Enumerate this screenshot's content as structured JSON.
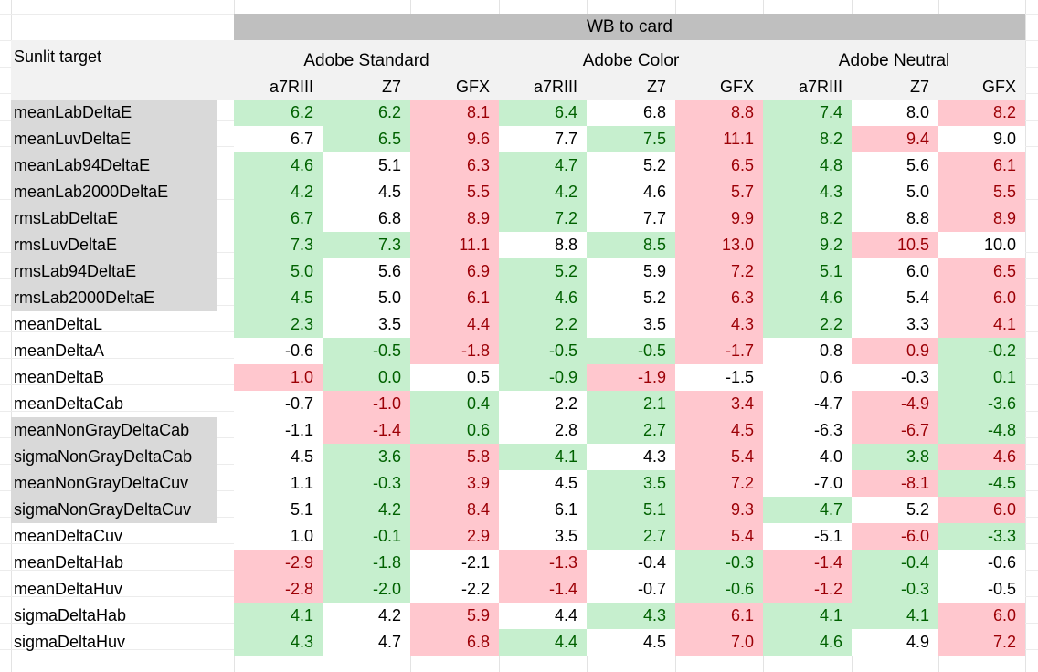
{
  "banner": "WB to card",
  "corner_label": "Sunlit target",
  "groups": [
    "Adobe Standard",
    "Adobe Color",
    "Adobe Neutral"
  ],
  "cameras": [
    "a7RIII",
    "Z7",
    "GFX",
    "a7RIII",
    "Z7",
    "GFX",
    "a7RIII",
    "Z7",
    "GFX"
  ],
  "colors": {
    "good_bg": "#c6efce",
    "good_text": "#006100",
    "bad_bg": "#ffc7ce",
    "bad_text": "#9c0006",
    "label_highlight": "#d9d9d9",
    "banner_bg": "#bfbfbf"
  },
  "rows": [
    {
      "label": "meanLabDeltaE",
      "highlight": true,
      "values": [
        "6.2",
        "6.2",
        "8.1",
        "6.4",
        "6.8",
        "8.8",
        "7.4",
        "8.0",
        "8.2"
      ],
      "colors": [
        "g",
        "g",
        "r",
        "g",
        "w",
        "r",
        "g",
        "w",
        "r"
      ]
    },
    {
      "label": "meanLuvDeltaE",
      "highlight": true,
      "values": [
        "6.7",
        "6.5",
        "9.6",
        "7.7",
        "7.5",
        "11.1",
        "8.2",
        "9.4",
        "9.0"
      ],
      "colors": [
        "w",
        "g",
        "r",
        "w",
        "g",
        "r",
        "g",
        "r",
        "w"
      ]
    },
    {
      "label": "meanLab94DeltaE",
      "highlight": true,
      "values": [
        "4.6",
        "5.1",
        "6.3",
        "4.7",
        "5.2",
        "6.5",
        "4.8",
        "5.6",
        "6.1"
      ],
      "colors": [
        "g",
        "w",
        "r",
        "g",
        "w",
        "r",
        "g",
        "w",
        "r"
      ]
    },
    {
      "label": "meanLab2000DeltaE",
      "highlight": true,
      "values": [
        "4.2",
        "4.5",
        "5.5",
        "4.2",
        "4.6",
        "5.7",
        "4.3",
        "5.0",
        "5.5"
      ],
      "colors": [
        "g",
        "w",
        "r",
        "g",
        "w",
        "r",
        "g",
        "w",
        "r"
      ]
    },
    {
      "label": "rmsLabDeltaE",
      "highlight": true,
      "values": [
        "6.7",
        "6.8",
        "8.9",
        "7.2",
        "7.7",
        "9.9",
        "8.2",
        "8.8",
        "8.9"
      ],
      "colors": [
        "g",
        "w",
        "r",
        "g",
        "w",
        "r",
        "g",
        "w",
        "r"
      ]
    },
    {
      "label": "rmsLuvDeltaE",
      "highlight": true,
      "values": [
        "7.3",
        "7.3",
        "11.1",
        "8.8",
        "8.5",
        "13.0",
        "9.2",
        "10.5",
        "10.0"
      ],
      "colors": [
        "g",
        "g",
        "r",
        "w",
        "g",
        "r",
        "g",
        "r",
        "w"
      ]
    },
    {
      "label": "rmsLab94DeltaE",
      "highlight": true,
      "values": [
        "5.0",
        "5.6",
        "6.9",
        "5.2",
        "5.9",
        "7.2",
        "5.1",
        "6.0",
        "6.5"
      ],
      "colors": [
        "g",
        "w",
        "r",
        "g",
        "w",
        "r",
        "g",
        "w",
        "r"
      ]
    },
    {
      "label": "rmsLab2000DeltaE",
      "highlight": true,
      "values": [
        "4.5",
        "5.0",
        "6.1",
        "4.6",
        "5.2",
        "6.3",
        "4.6",
        "5.4",
        "6.0"
      ],
      "colors": [
        "g",
        "w",
        "r",
        "g",
        "w",
        "r",
        "g",
        "w",
        "r"
      ]
    },
    {
      "label": "meanDeltaL",
      "highlight": false,
      "values": [
        "2.3",
        "3.5",
        "4.4",
        "2.2",
        "3.5",
        "4.3",
        "2.2",
        "3.3",
        "4.1"
      ],
      "colors": [
        "g",
        "w",
        "r",
        "g",
        "w",
        "r",
        "g",
        "w",
        "r"
      ]
    },
    {
      "label": "meanDeltaA",
      "highlight": false,
      "values": [
        "-0.6",
        "-0.5",
        "-1.8",
        "-0.5",
        "-0.5",
        "-1.7",
        "0.8",
        "0.9",
        "-0.2"
      ],
      "colors": [
        "w",
        "g",
        "r",
        "g",
        "g",
        "r",
        "w",
        "r",
        "g"
      ]
    },
    {
      "label": "meanDeltaB",
      "highlight": false,
      "values": [
        "1.0",
        "0.0",
        "0.5",
        "-0.9",
        "-1.9",
        "-1.5",
        "0.6",
        "-0.3",
        "0.1"
      ],
      "colors": [
        "r",
        "g",
        "w",
        "g",
        "r",
        "w",
        "w",
        "w",
        "g"
      ]
    },
    {
      "label": "meanDeltaCab",
      "highlight": false,
      "values": [
        "-0.7",
        "-1.0",
        "0.4",
        "2.2",
        "2.1",
        "3.4",
        "-4.7",
        "-4.9",
        "-3.6"
      ],
      "colors": [
        "w",
        "r",
        "g",
        "w",
        "g",
        "r",
        "w",
        "r",
        "g"
      ]
    },
    {
      "label": "meanNonGrayDeltaCab",
      "highlight": true,
      "values": [
        "-1.1",
        "-1.4",
        "0.6",
        "2.8",
        "2.7",
        "4.5",
        "-6.3",
        "-6.7",
        "-4.8"
      ],
      "colors": [
        "w",
        "r",
        "g",
        "w",
        "g",
        "r",
        "w",
        "r",
        "g"
      ]
    },
    {
      "label": "sigmaNonGrayDeltaCab",
      "highlight": true,
      "values": [
        "4.5",
        "3.6",
        "5.8",
        "4.1",
        "4.3",
        "5.4",
        "4.0",
        "3.8",
        "4.6"
      ],
      "colors": [
        "w",
        "g",
        "r",
        "g",
        "w",
        "r",
        "w",
        "g",
        "r"
      ]
    },
    {
      "label": "meanNonGrayDeltaCuv",
      "highlight": true,
      "values": [
        "1.1",
        "-0.3",
        "3.9",
        "4.5",
        "3.5",
        "7.2",
        "-7.0",
        "-8.1",
        "-4.5"
      ],
      "colors": [
        "w",
        "g",
        "r",
        "w",
        "g",
        "r",
        "w",
        "r",
        "g"
      ]
    },
    {
      "label": "sigmaNonGrayDeltaCuv",
      "highlight": true,
      "values": [
        "5.1",
        "4.2",
        "8.4",
        "6.1",
        "5.1",
        "9.3",
        "4.7",
        "5.2",
        "6.0"
      ],
      "colors": [
        "w",
        "g",
        "r",
        "w",
        "g",
        "r",
        "g",
        "w",
        "r"
      ]
    },
    {
      "label": "meanDeltaCuv",
      "highlight": false,
      "values": [
        "1.0",
        "-0.1",
        "2.9",
        "3.5",
        "2.7",
        "5.4",
        "-5.1",
        "-6.0",
        "-3.3"
      ],
      "colors": [
        "w",
        "g",
        "r",
        "w",
        "g",
        "r",
        "w",
        "r",
        "g"
      ]
    },
    {
      "label": "meanDeltaHab",
      "highlight": false,
      "values": [
        "-2.9",
        "-1.8",
        "-2.1",
        "-1.3",
        "-0.4",
        "-0.3",
        "-1.4",
        "-0.4",
        "-0.6"
      ],
      "colors": [
        "r",
        "g",
        "w",
        "r",
        "w",
        "g",
        "r",
        "g",
        "w"
      ]
    },
    {
      "label": "meanDeltaHuv",
      "highlight": false,
      "values": [
        "-2.8",
        "-2.0",
        "-2.2",
        "-1.4",
        "-0.7",
        "-0.6",
        "-1.2",
        "-0.3",
        "-0.5"
      ],
      "colors": [
        "r",
        "g",
        "w",
        "r",
        "w",
        "g",
        "r",
        "g",
        "w"
      ]
    },
    {
      "label": "sigmaDeltaHab",
      "highlight": false,
      "values": [
        "4.1",
        "4.2",
        "5.9",
        "4.4",
        "4.3",
        "6.1",
        "4.1",
        "4.1",
        "6.0"
      ],
      "colors": [
        "g",
        "w",
        "r",
        "w",
        "g",
        "r",
        "g",
        "g",
        "r"
      ]
    },
    {
      "label": "sigmaDeltaHuv",
      "highlight": false,
      "values": [
        "4.3",
        "4.7",
        "6.8",
        "4.4",
        "4.5",
        "7.0",
        "4.6",
        "4.9",
        "7.2"
      ],
      "colors": [
        "g",
        "w",
        "r",
        "g",
        "w",
        "r",
        "g",
        "w",
        "r"
      ]
    }
  ]
}
